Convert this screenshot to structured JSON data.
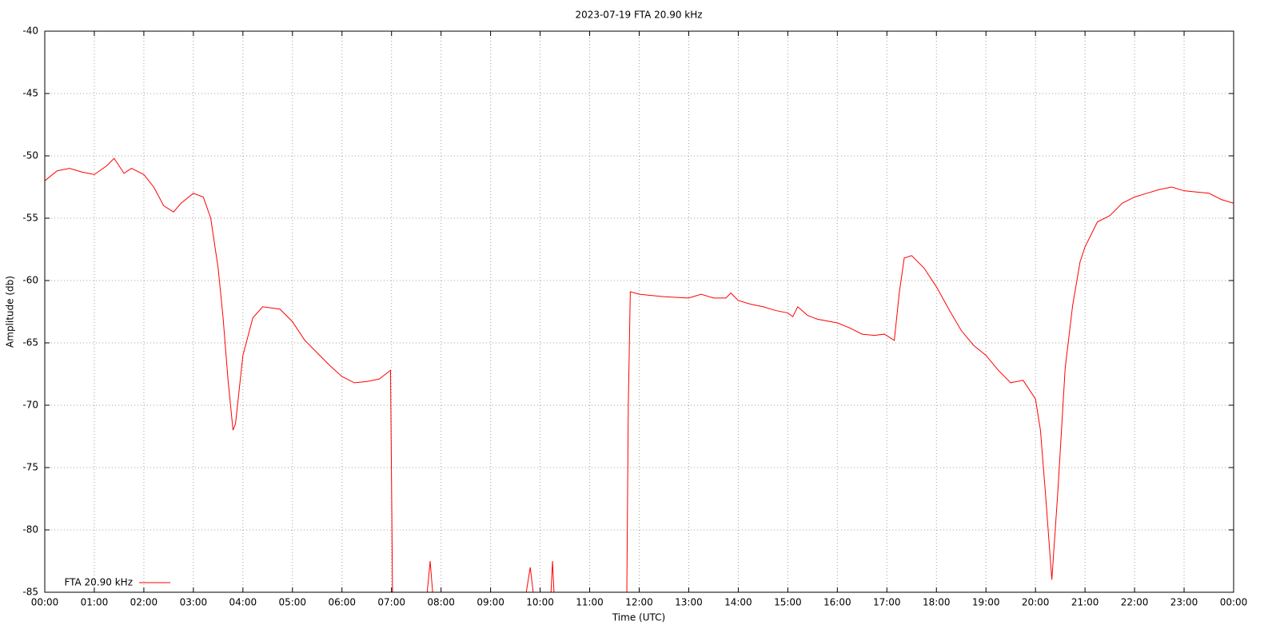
{
  "chart_data": {
    "type": "line",
    "title": "2023-07-19 FTA 20.90 kHz",
    "x_label": "Time (UTC)",
    "y_label": "Amplitude (db)",
    "grid": true,
    "legend_position": "lower left",
    "xlim": [
      0,
      24
    ],
    "xticks": [
      {
        "value": 0,
        "label": "00:00"
      },
      {
        "value": 1,
        "label": "01:00"
      },
      {
        "value": 2,
        "label": "02:00"
      },
      {
        "value": 3,
        "label": "03:00"
      },
      {
        "value": 4,
        "label": "04:00"
      },
      {
        "value": 5,
        "label": "05:00"
      },
      {
        "value": 6,
        "label": "06:00"
      },
      {
        "value": 7,
        "label": "07:00"
      },
      {
        "value": 8,
        "label": "08:00"
      },
      {
        "value": 9,
        "label": "09:00"
      },
      {
        "value": 10,
        "label": "10:00"
      },
      {
        "value": 11,
        "label": "11:00"
      },
      {
        "value": 12,
        "label": "12:00"
      },
      {
        "value": 13,
        "label": "13:00"
      },
      {
        "value": 14,
        "label": "14:00"
      },
      {
        "value": 15,
        "label": "15:00"
      },
      {
        "value": 16,
        "label": "16:00"
      },
      {
        "value": 17,
        "label": "17:00"
      },
      {
        "value": 18,
        "label": "18:00"
      },
      {
        "value": 19,
        "label": "19:00"
      },
      {
        "value": 20,
        "label": "20:00"
      },
      {
        "value": 21,
        "label": "21:00"
      },
      {
        "value": 22,
        "label": "22:00"
      },
      {
        "value": 23,
        "label": "23:00"
      },
      {
        "value": 24,
        "label": "00:00"
      }
    ],
    "ylim": [
      -85,
      -40
    ],
    "yticks": [
      -85,
      -80,
      -75,
      -70,
      -65,
      -60,
      -55,
      -50,
      -45,
      -40
    ],
    "x": [
      0,
      0.25,
      0.5,
      0.75,
      1.0,
      1.25,
      1.4,
      1.6,
      1.75,
      2.0,
      2.2,
      2.4,
      2.6,
      2.75,
      3.0,
      3.2,
      3.35,
      3.5,
      3.6,
      3.7,
      3.8,
      3.85,
      4.0,
      4.2,
      4.4,
      4.75,
      5.0,
      5.25,
      5.5,
      5.75,
      6.0,
      6.25,
      6.5,
      6.75,
      6.98,
      7.02,
      7.4,
      7.72,
      7.78,
      7.83,
      8.8,
      9.72,
      9.8,
      9.86,
      10.0,
      10.22,
      10.25,
      10.28,
      11.0,
      11.75,
      11.78,
      11.82,
      12.0,
      12.5,
      13.0,
      13.25,
      13.5,
      13.75,
      13.85,
      14.0,
      14.25,
      14.5,
      14.75,
      15.0,
      15.1,
      15.2,
      15.4,
      15.6,
      16.0,
      16.25,
      16.5,
      16.75,
      16.95,
      17.15,
      17.25,
      17.35,
      17.5,
      17.75,
      18.0,
      18.25,
      18.5,
      18.75,
      19.0,
      19.25,
      19.5,
      19.75,
      20.0,
      20.1,
      20.2,
      20.33,
      20.45,
      20.6,
      20.75,
      20.9,
      21.0,
      21.25,
      21.5,
      21.75,
      22.0,
      22.25,
      22.5,
      22.75,
      23.0,
      23.25,
      23.5,
      23.75,
      24.0
    ],
    "series": [
      {
        "name": "FTA 20.90 kHz",
        "color": "#ff0000",
        "values": [
          -52,
          -51.2,
          -51,
          -51.3,
          -51.5,
          -50.8,
          -50.2,
          -51.4,
          -51,
          -51.5,
          -52.5,
          -54,
          -54.5,
          -53.8,
          -53,
          -53.3,
          -55,
          -59,
          -63,
          -68,
          -72,
          -71.5,
          -66,
          -63,
          -62.1,
          -62.3,
          -63.3,
          -64.8,
          -65.8,
          -66.8,
          -67.7,
          -68.2,
          -68.1,
          -67.9,
          -67.2,
          -85,
          null,
          -85,
          -82.5,
          -85,
          null,
          -85,
          -83,
          -85,
          null,
          -85,
          -82.5,
          -85,
          null,
          -85,
          -70,
          -60.9,
          -61.1,
          -61.3,
          -61.4,
          -61.1,
          -61.4,
          -61.4,
          -61,
          -61.6,
          -61.9,
          -62.1,
          -62.4,
          -62.6,
          -62.9,
          -62.1,
          -62.8,
          -63.1,
          -63.4,
          -63.8,
          -64.3,
          -64.4,
          -64.3,
          -64.8,
          -61,
          -58.2,
          -58,
          -59,
          -60.5,
          -62.3,
          -64,
          -65.2,
          -66,
          -67.2,
          -68.2,
          -68,
          -69.5,
          -72,
          -77,
          -84,
          -77,
          -67,
          -62,
          -58.5,
          -57.3,
          -55.3,
          -54.8,
          -53.8,
          -53.3,
          -53,
          -52.7,
          -52.5,
          -52.8,
          -52.9,
          -53,
          -53.5,
          -53.8
        ]
      }
    ]
  }
}
